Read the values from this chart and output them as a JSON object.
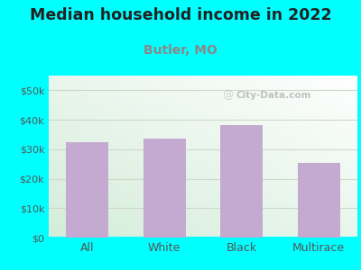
{
  "title": "Median household income in 2022",
  "subtitle": "Butler, MO",
  "categories": [
    "All",
    "White",
    "Black",
    "Multirace"
  ],
  "values": [
    32500,
    33500,
    38200,
    25500
  ],
  "bar_color": "#c4aad0",
  "title_fontsize": 12.5,
  "title_color": "#222222",
  "subtitle_fontsize": 10,
  "subtitle_color": "#888888",
  "tick_label_color": "#555555",
  "background_color": "#00ffff",
  "ylim": [
    0,
    55000
  ],
  "yticks": [
    0,
    10000,
    20000,
    30000,
    40000,
    50000
  ],
  "ytick_labels": [
    "$0",
    "$10k",
    "$20k",
    "$30k",
    "$40k",
    "$50k"
  ],
  "watermark": "City-Data.com",
  "grid_color": "#d0d8c8",
  "bottom_line_color": "#00ffff"
}
